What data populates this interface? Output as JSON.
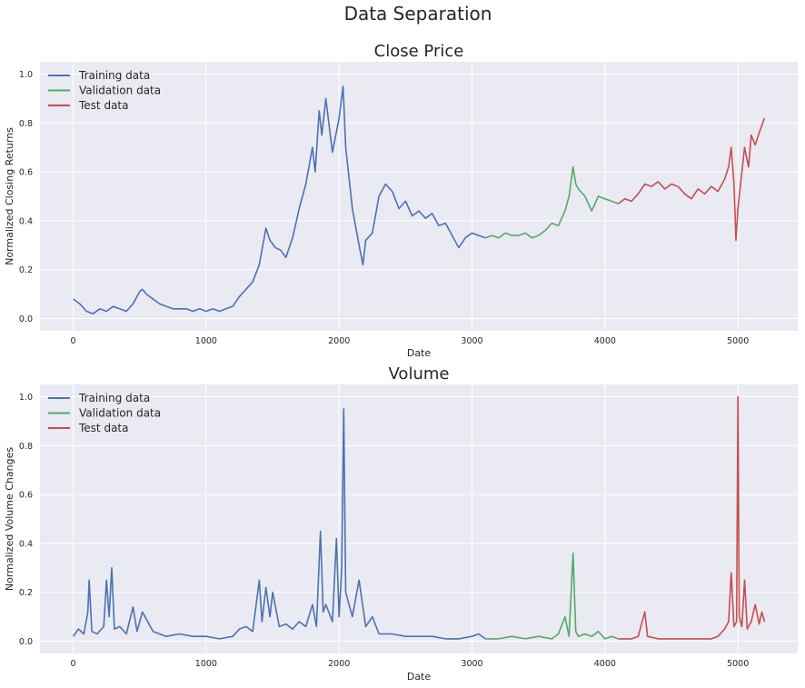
{
  "figure": {
    "suptitle": "Data Separation"
  },
  "colors": {
    "background": "#ffffff",
    "axes_face": "#eaeaf2",
    "grid": "#ffffff",
    "training": "#4c72b0",
    "validation": "#55a868",
    "test": "#c44e52",
    "text": "#262626"
  },
  "chart_data": [
    {
      "type": "line",
      "title": "Close Price",
      "xlabel": "Date",
      "ylabel": "Normalized Closing Returns",
      "xlim": [
        -250,
        5450
      ],
      "ylim": [
        -0.05,
        1.05
      ],
      "xticks": [
        0,
        1000,
        2000,
        3000,
        4000,
        5000
      ],
      "yticks": [
        0.0,
        0.2,
        0.4,
        0.6,
        0.8,
        1.0
      ],
      "xtick_labels": [
        "0",
        "1000",
        "2000",
        "3000",
        "4000",
        "5000"
      ],
      "ytick_labels": [
        "0.0",
        "0.2",
        "0.4",
        "0.6",
        "0.8",
        "1.0"
      ],
      "grid": true,
      "legend": "top-left",
      "series": [
        {
          "name": "Training data",
          "color_key": "training",
          "x": [
            0,
            50,
            100,
            150,
            200,
            250,
            300,
            350,
            400,
            450,
            500,
            520,
            550,
            600,
            650,
            700,
            750,
            800,
            850,
            900,
            950,
            1000,
            1050,
            1100,
            1150,
            1200,
            1250,
            1300,
            1350,
            1400,
            1450,
            1480,
            1520,
            1560,
            1600,
            1650,
            1700,
            1750,
            1800,
            1820,
            1850,
            1870,
            1900,
            1950,
            2000,
            2030,
            2050,
            2080,
            2100,
            2150,
            2180,
            2200,
            2250,
            2300,
            2350,
            2400,
            2450,
            2500,
            2550,
            2600,
            2650,
            2700,
            2750,
            2800,
            2850,
            2900,
            2950,
            3000,
            3050,
            3100
          ],
          "y": [
            0.08,
            0.06,
            0.03,
            0.02,
            0.04,
            0.03,
            0.05,
            0.04,
            0.03,
            0.06,
            0.11,
            0.12,
            0.1,
            0.08,
            0.06,
            0.05,
            0.04,
            0.04,
            0.04,
            0.03,
            0.04,
            0.03,
            0.04,
            0.03,
            0.04,
            0.05,
            0.09,
            0.12,
            0.15,
            0.22,
            0.37,
            0.32,
            0.29,
            0.28,
            0.25,
            0.33,
            0.45,
            0.55,
            0.7,
            0.6,
            0.85,
            0.75,
            0.9,
            0.68,
            0.82,
            0.95,
            0.7,
            0.55,
            0.45,
            0.3,
            0.22,
            0.32,
            0.35,
            0.5,
            0.55,
            0.52,
            0.45,
            0.48,
            0.42,
            0.44,
            0.41,
            0.43,
            0.38,
            0.39,
            0.34,
            0.29,
            0.33,
            0.35,
            0.34,
            0.33
          ]
        },
        {
          "name": "Validation data",
          "color_key": "validation",
          "x": [
            3100,
            3150,
            3200,
            3250,
            3300,
            3350,
            3400,
            3450,
            3500,
            3550,
            3600,
            3650,
            3700,
            3730,
            3760,
            3780,
            3800,
            3850,
            3900,
            3950,
            4000,
            4050,
            4100
          ],
          "y": [
            0.33,
            0.34,
            0.33,
            0.35,
            0.34,
            0.34,
            0.35,
            0.33,
            0.34,
            0.36,
            0.39,
            0.38,
            0.44,
            0.5,
            0.62,
            0.55,
            0.53,
            0.5,
            0.44,
            0.5,
            0.49,
            0.48,
            0.47
          ]
        },
        {
          "name": "Test data",
          "color_key": "test",
          "x": [
            4100,
            4150,
            4200,
            4250,
            4300,
            4350,
            4400,
            4450,
            4500,
            4550,
            4600,
            4650,
            4700,
            4750,
            4800,
            4850,
            4900,
            4930,
            4950,
            4970,
            4985,
            5000,
            5020,
            5050,
            5080,
            5100,
            5130,
            5160,
            5180,
            5200
          ],
          "y": [
            0.47,
            0.49,
            0.48,
            0.51,
            0.55,
            0.54,
            0.56,
            0.53,
            0.55,
            0.54,
            0.51,
            0.49,
            0.53,
            0.51,
            0.54,
            0.52,
            0.57,
            0.62,
            0.7,
            0.55,
            0.32,
            0.45,
            0.55,
            0.7,
            0.62,
            0.75,
            0.71,
            0.76,
            0.79,
            0.82
          ]
        }
      ]
    },
    {
      "type": "line",
      "title": "Volume",
      "xlabel": "Date",
      "ylabel": "Normalized Volume Changes",
      "xlim": [
        -250,
        5450
      ],
      "ylim": [
        -0.05,
        1.05
      ],
      "xticks": [
        0,
        1000,
        2000,
        3000,
        4000,
        5000
      ],
      "yticks": [
        0.0,
        0.2,
        0.4,
        0.6,
        0.8,
        1.0
      ],
      "xtick_labels": [
        "0",
        "1000",
        "2000",
        "3000",
        "4000",
        "5000"
      ],
      "ytick_labels": [
        "0.0",
        "0.2",
        "0.4",
        "0.6",
        "0.8",
        "1.0"
      ],
      "grid": true,
      "legend": "top-left",
      "series": [
        {
          "name": "Training data",
          "color_key": "training",
          "x": [
            0,
            40,
            80,
            110,
            120,
            140,
            180,
            230,
            250,
            270,
            290,
            310,
            350,
            400,
            450,
            480,
            520,
            600,
            700,
            800,
            900,
            1000,
            1100,
            1200,
            1250,
            1300,
            1350,
            1400,
            1420,
            1450,
            1480,
            1500,
            1550,
            1600,
            1650,
            1700,
            1750,
            1800,
            1830,
            1860,
            1880,
            1900,
            1950,
            1980,
            2000,
            2020,
            2035,
            2050,
            2100,
            2150,
            2200,
            2250,
            2300,
            2400,
            2500,
            2600,
            2700,
            2800,
            2900,
            3000,
            3050,
            3100
          ],
          "y": [
            0.02,
            0.05,
            0.03,
            0.12,
            0.25,
            0.04,
            0.03,
            0.06,
            0.25,
            0.1,
            0.3,
            0.05,
            0.06,
            0.03,
            0.14,
            0.04,
            0.12,
            0.04,
            0.02,
            0.03,
            0.02,
            0.02,
            0.01,
            0.02,
            0.05,
            0.06,
            0.04,
            0.25,
            0.08,
            0.22,
            0.1,
            0.2,
            0.06,
            0.07,
            0.05,
            0.08,
            0.06,
            0.15,
            0.06,
            0.45,
            0.12,
            0.15,
            0.08,
            0.42,
            0.1,
            0.3,
            0.95,
            0.2,
            0.1,
            0.25,
            0.06,
            0.1,
            0.03,
            0.03,
            0.02,
            0.02,
            0.02,
            0.01,
            0.01,
            0.02,
            0.03,
            0.01
          ]
        },
        {
          "name": "Validation data",
          "color_key": "validation",
          "x": [
            3100,
            3200,
            3300,
            3400,
            3500,
            3600,
            3650,
            3700,
            3730,
            3760,
            3780,
            3800,
            3850,
            3900,
            3950,
            4000,
            4050,
            4100
          ],
          "y": [
            0.01,
            0.01,
            0.02,
            0.01,
            0.02,
            0.01,
            0.03,
            0.1,
            0.02,
            0.36,
            0.04,
            0.02,
            0.03,
            0.02,
            0.04,
            0.01,
            0.02,
            0.01
          ]
        },
        {
          "name": "Test data",
          "color_key": "test",
          "x": [
            4100,
            4200,
            4250,
            4300,
            4320,
            4400,
            4500,
            4600,
            4700,
            4800,
            4850,
            4900,
            4930,
            4950,
            4970,
            4990,
            5000,
            5010,
            5030,
            5050,
            5070,
            5100,
            5130,
            5160,
            5180,
            5200
          ],
          "y": [
            0.01,
            0.01,
            0.02,
            0.12,
            0.02,
            0.01,
            0.01,
            0.01,
            0.01,
            0.01,
            0.02,
            0.05,
            0.08,
            0.28,
            0.06,
            0.08,
            1.0,
            0.1,
            0.06,
            0.25,
            0.05,
            0.08,
            0.15,
            0.07,
            0.12,
            0.08
          ]
        }
      ]
    }
  ]
}
